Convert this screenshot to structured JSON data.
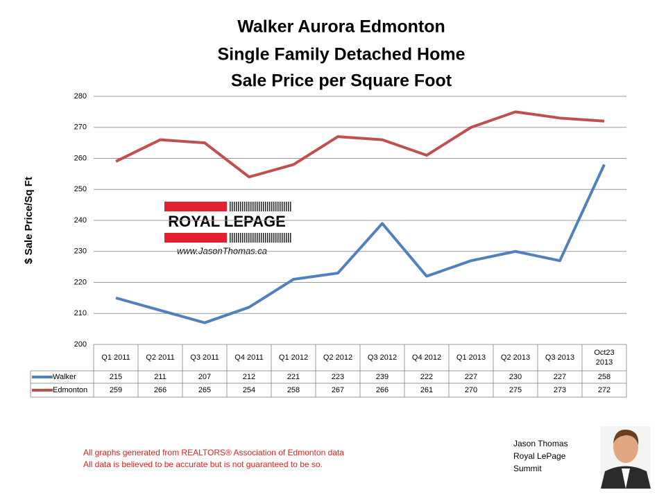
{
  "chart_data": {
    "type": "line",
    "title_lines": [
      "Walker Aurora Edmonton",
      "Single Family Detached Home",
      "Sale Price per Square Foot"
    ],
    "y_label": "$ Sale Price/Sq Ft",
    "categories": [
      "Q1 2011",
      "Q2 2011",
      "Q3 2011",
      "Q4 2011",
      "Q1 2012",
      "Q2 2012",
      "Q3 2012",
      "Q4 2012",
      "Q1 2013",
      "Q2 2013",
      "Q3 2013",
      "Oct23 2013"
    ],
    "series": [
      {
        "name": "Walker",
        "color": "#4f81bd",
        "values": [
          215,
          211,
          207,
          212,
          221,
          223,
          239,
          222,
          227,
          230,
          227,
          258
        ]
      },
      {
        "name": "Edmonton",
        "color": "#c0504d",
        "values": [
          259,
          266,
          265,
          254,
          258,
          267,
          266,
          261,
          270,
          275,
          273,
          272
        ]
      }
    ],
    "ylim": [
      200,
      280
    ],
    "yticks": [
      200,
      210,
      220,
      230,
      240,
      250,
      260,
      270,
      280
    ],
    "grid": true,
    "data_table": true
  },
  "logo": {
    "brand": "ROYAL LEPAGE",
    "website": "www.JasonThomas.ca"
  },
  "footer": {
    "notes": [
      "All graphs generated from REALTORS® Association of Edmonton data",
      "All data is believed to be accurate but is not guaranteed to be so."
    ],
    "signature": [
      "Jason Thomas",
      "Royal LePage",
      "Summit"
    ]
  }
}
